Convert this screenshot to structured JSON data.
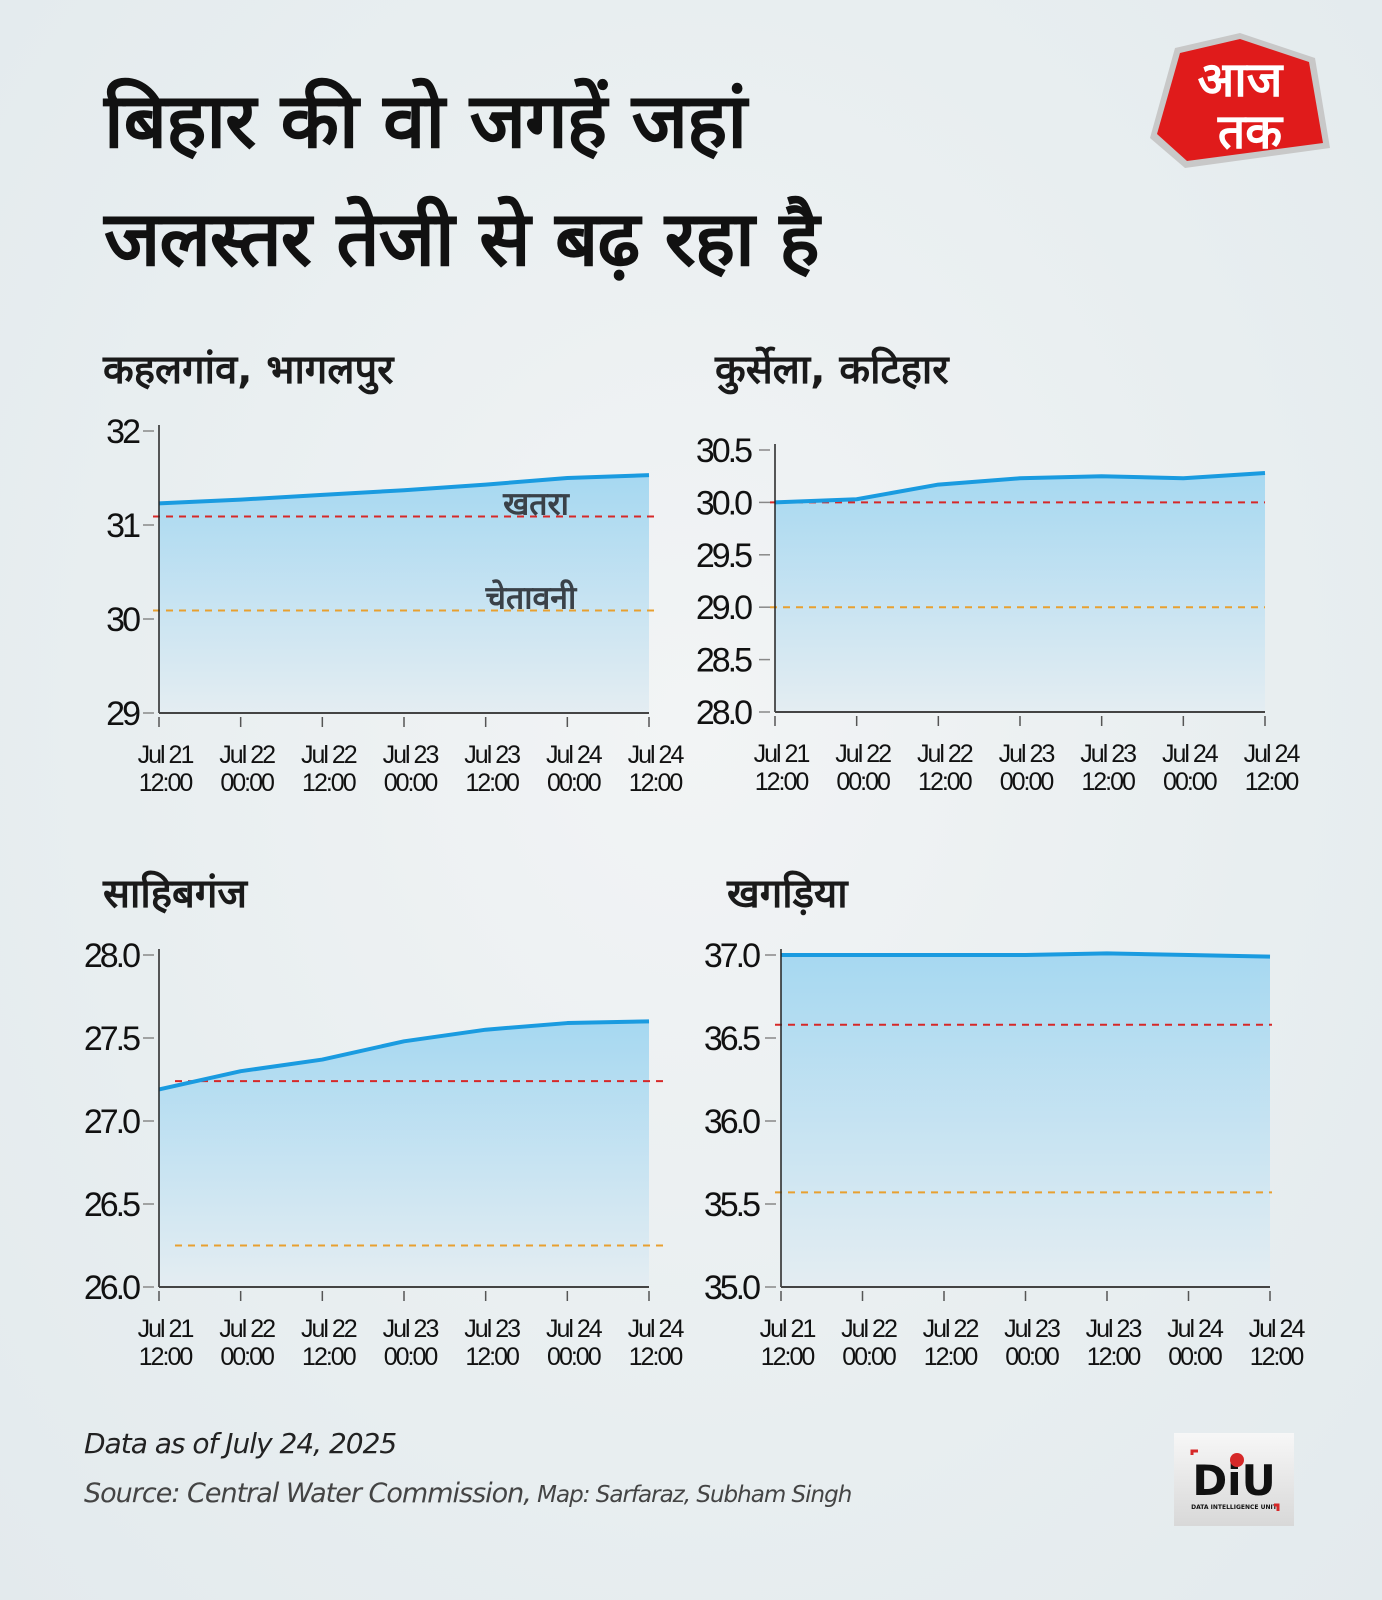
{
  "header": {
    "title_line1": "बिहार की वो जगहें जहां",
    "title_line2": "जलस्तर तेजी से बढ़ रहा है",
    "logo_text": "आज तक"
  },
  "colors": {
    "line": "#1a9be0",
    "fill_top": "#a6d8f1",
    "fill_bottom": "#e4edf2",
    "danger": "#d62828",
    "warning": "#e8a030",
    "background": "#e9eef0"
  },
  "chart_data": [
    {
      "type": "area",
      "title": "कहलगांव, भागलपुर",
      "categories": [
        "Jul 21 12:00",
        "Jul 22 00:00",
        "Jul 22 12:00",
        "Jul 23 00:00",
        "Jul 23 12:00",
        "Jul 24 00:00",
        "Jul 24 12:00"
      ],
      "x_labels": [
        [
          "Jul 21",
          "12:00"
        ],
        [
          "Jul 22",
          "00:00"
        ],
        [
          "Jul 22",
          "12:00"
        ],
        [
          "Jul 23",
          "00:00"
        ],
        [
          "Jul 23",
          "12:00"
        ],
        [
          "Jul 24",
          "00:00"
        ],
        [
          "Jul 24",
          "12:00"
        ]
      ],
      "values": [
        31.23,
        31.27,
        31.32,
        31.37,
        31.43,
        31.5,
        31.53
      ],
      "ylim": [
        29,
        32
      ],
      "yticks": [
        "32",
        "31",
        "30",
        "29"
      ],
      "ytick_values": [
        32,
        31,
        30,
        29
      ],
      "danger_level": 31.09,
      "warning_level": 30.09,
      "danger_label": "खतरा",
      "warning_label": "चेतावनी",
      "grid": false
    },
    {
      "type": "area",
      "title": "कुर्सेला, कटिहार",
      "categories": [
        "Jul 21 12:00",
        "Jul 22 00:00",
        "Jul 22 12:00",
        "Jul 23 00:00",
        "Jul 23 12:00",
        "Jul 24 00:00",
        "Jul 24 12:00"
      ],
      "x_labels": [
        [
          "Jul 21",
          "12:00"
        ],
        [
          "Jul 22",
          "00:00"
        ],
        [
          "Jul 22",
          "12:00"
        ],
        [
          "Jul 23",
          "00:00"
        ],
        [
          "Jul 23",
          "12:00"
        ],
        [
          "Jul 24",
          "00:00"
        ],
        [
          "Jul 24",
          "12:00"
        ]
      ],
      "values": [
        30.0,
        30.03,
        30.17,
        30.23,
        30.25,
        30.23,
        30.28
      ],
      "ylim": [
        28.0,
        30.5
      ],
      "yticks": [
        "30.5",
        "30.0",
        "29.5",
        "29.0",
        "28.5",
        "28.0"
      ],
      "ytick_values": [
        30.5,
        30.0,
        29.5,
        29.0,
        28.5,
        28.0
      ],
      "danger_level": 30.0,
      "warning_level": 29.0,
      "grid": false
    },
    {
      "type": "area",
      "title": "साहिबगंज",
      "categories": [
        "Jul 21 12:00",
        "Jul 22 00:00",
        "Jul 22 12:00",
        "Jul 23 00:00",
        "Jul 23 12:00",
        "Jul 24 00:00",
        "Jul 24 12:00"
      ],
      "x_labels": [
        [
          "Jul 21",
          "12:00"
        ],
        [
          "Jul 22",
          "00:00"
        ],
        [
          "Jul 22",
          "12:00"
        ],
        [
          "Jul 23",
          "00:00"
        ],
        [
          "Jul 23",
          "12:00"
        ],
        [
          "Jul 24",
          "00:00"
        ],
        [
          "Jul 24",
          "12:00"
        ]
      ],
      "values": [
        27.19,
        27.3,
        27.37,
        27.48,
        27.55,
        27.59,
        27.6
      ],
      "ylim": [
        26.0,
        28.0
      ],
      "yticks": [
        "28.0",
        "27.5",
        "27.0",
        "26.5",
        "26.0"
      ],
      "ytick_values": [
        28.0,
        27.5,
        27.0,
        26.5,
        26.0
      ],
      "danger_level": 27.24,
      "warning_level": 26.25,
      "grid": false
    },
    {
      "type": "area",
      "title": "खगड़िया",
      "categories": [
        "Jul 21 12:00",
        "Jul 22 00:00",
        "Jul 22 12:00",
        "Jul 23 00:00",
        "Jul 23 12:00",
        "Jul 24 00:00",
        "Jul 24 12:00"
      ],
      "x_labels": [
        [
          "Jul 21",
          "12:00"
        ],
        [
          "Jul 22",
          "00:00"
        ],
        [
          "Jul 22",
          "12:00"
        ],
        [
          "Jul 23",
          "00:00"
        ],
        [
          "Jul 23",
          "12:00"
        ],
        [
          "Jul 24",
          "00:00"
        ],
        [
          "Jul 24",
          "12:00"
        ]
      ],
      "values": [
        37.0,
        37.0,
        37.0,
        37.0,
        37.01,
        37.0,
        36.99
      ],
      "ylim": [
        35.0,
        37.0
      ],
      "yticks": [
        "37.0",
        "36.5",
        "36.0",
        "35.5",
        "35.0"
      ],
      "ytick_values": [
        37.0,
        36.5,
        36.0,
        35.5,
        35.0
      ],
      "danger_level": 36.58,
      "warning_level": 35.57,
      "grid": false
    }
  ],
  "footer": {
    "date": "Data as of July 24, 2025",
    "source": "Source: Central Water Commission,",
    "credit": " Map: Sarfaraz, Subham Singh",
    "diu_logo": "DIU DATA INTELLIGENCE UNIT"
  }
}
